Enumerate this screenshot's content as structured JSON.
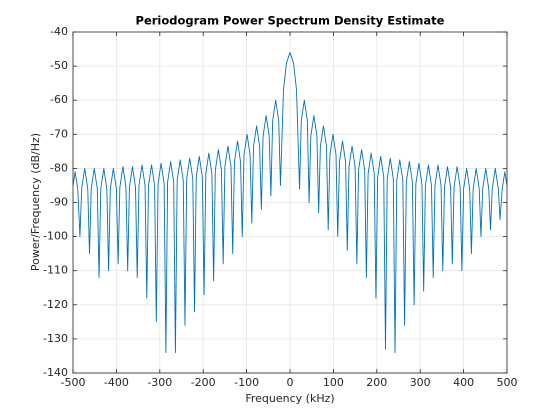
{
  "chart_data": {
    "type": "line",
    "title": "Periodogram Power Spectrum Density Estimate",
    "x_label": "Frequency (kHz)",
    "y_label": "Power/Frequency (dB/Hz)",
    "xlim": [
      -500,
      500
    ],
    "ylim": [
      -140,
      -40
    ],
    "xticks": [
      -500,
      -400,
      -300,
      -200,
      -100,
      0,
      100,
      200,
      300,
      400,
      500
    ],
    "yticks": [
      -140,
      -130,
      -120,
      -110,
      -100,
      -90,
      -80,
      -70,
      -60,
      -50,
      -40
    ],
    "grid": true,
    "series": [
      {
        "color": "#0072bd",
        "x": [
          -500,
          -495,
          -489,
          -484,
          -480,
          -473,
          -466,
          -462,
          -458,
          -451,
          -444,
          -440,
          -436,
          -429,
          -422,
          -418,
          -414,
          -407,
          -400,
          -396,
          -392,
          -385,
          -378,
          -374,
          -370,
          -363,
          -356,
          -352,
          -348,
          -341,
          -334,
          -330,
          -326,
          -319,
          -312,
          -308,
          -304,
          -297,
          -290,
          -286,
          -282,
          -275,
          -268,
          -264,
          -260,
          -253,
          -246,
          -242,
          -238,
          -231,
          -224,
          -220,
          -216,
          -209,
          -202,
          -198,
          -194,
          -187,
          -180,
          -176,
          -172,
          -165,
          -158,
          -154,
          -150,
          -143,
          -136,
          -132,
          -128,
          -121,
          -114,
          -110,
          -106,
          -99,
          -92,
          -88,
          -84,
          -77,
          -70,
          -66,
          -62,
          -55,
          -48,
          -44,
          -40,
          -33,
          -26,
          -22,
          -15,
          -8,
          0,
          8,
          15,
          22,
          26,
          33,
          40,
          44,
          48,
          55,
          62,
          66,
          70,
          77,
          84,
          88,
          92,
          99,
          106,
          110,
          114,
          121,
          128,
          132,
          136,
          143,
          150,
          154,
          158,
          165,
          172,
          176,
          180,
          187,
          194,
          198,
          202,
          209,
          216,
          220,
          224,
          231,
          238,
          242,
          246,
          253,
          260,
          264,
          268,
          275,
          282,
          286,
          290,
          297,
          304,
          308,
          312,
          319,
          326,
          330,
          334,
          341,
          348,
          352,
          356,
          363,
          370,
          374,
          378,
          385,
          392,
          396,
          400,
          407,
          414,
          418,
          422,
          429,
          436,
          440,
          444,
          451,
          458,
          462,
          466,
          473,
          480,
          484,
          489,
          495,
          500
        ],
        "values": [
          -85,
          -81,
          -86,
          -100,
          -86,
          -80,
          -86,
          -105,
          -86,
          -80,
          -86,
          -112,
          -86,
          -80,
          -86,
          -110,
          -86,
          -80,
          -86,
          -108,
          -85.5,
          -79.5,
          -85.5,
          -110,
          -85.5,
          -79.5,
          -85.5,
          -112,
          -85,
          -79,
          -85,
          -118,
          -85,
          -79,
          -85,
          -125,
          -84.5,
          -78.5,
          -84.5,
          -134,
          -84,
          -78,
          -84,
          -134,
          -83.5,
          -77.5,
          -83.5,
          -126,
          -83,
          -77,
          -83,
          -122,
          -82.5,
          -76.5,
          -82.5,
          -117,
          -81.5,
          -75.5,
          -81.5,
          -113,
          -80.5,
          -74.5,
          -80.5,
          -108,
          -79.5,
          -73.5,
          -79.5,
          -105,
          -78,
          -72,
          -78,
          -100,
          -76,
          -70,
          -76,
          -96,
          -73.5,
          -67.5,
          -73.5,
          -92,
          -70.5,
          -64.5,
          -70.5,
          -88,
          -66,
          -60,
          -66,
          -85,
          -57,
          -49,
          -46,
          -49,
          -57,
          -86,
          -66,
          -60,
          -66,
          -90,
          -70.5,
          -64.5,
          -70.5,
          -93,
          -73.5,
          -67.5,
          -73.5,
          -98,
          -76,
          -70,
          -76,
          -100,
          -78,
          -72,
          -78,
          -104,
          -79.5,
          -73.5,
          -79.5,
          -108,
          -80.5,
          -74.5,
          -80.5,
          -112,
          -81.5,
          -75.5,
          -81.5,
          -118,
          -82.5,
          -76.5,
          -82.5,
          -133,
          -83,
          -77,
          -83,
          -134,
          -83.5,
          -77.5,
          -83.5,
          -126,
          -84,
          -78,
          -84,
          -120,
          -84.5,
          -78.5,
          -84.5,
          -116,
          -85,
          -79,
          -85,
          -112,
          -85,
          -79,
          -85,
          -110,
          -85.5,
          -79.5,
          -85.5,
          -108,
          -85.5,
          -79.5,
          -85.5,
          -110,
          -86,
          -80,
          -86,
          -105,
          -86,
          -80,
          -86,
          -100,
          -86,
          -80,
          -86,
          -98,
          -86,
          -80,
          -86,
          -95,
          -86,
          -81,
          -85
        ]
      }
    ]
  }
}
